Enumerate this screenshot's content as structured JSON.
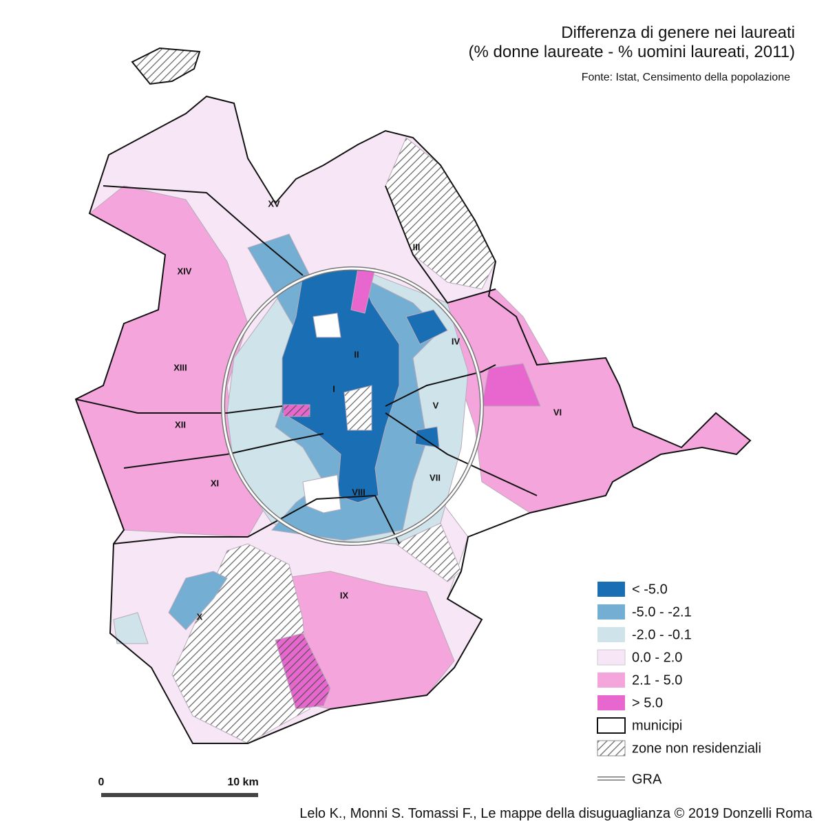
{
  "header": {
    "title": [
      "Differenza di genere nei laureati",
      "(% donne laureate - % uomini laureati, 2011)"
    ],
    "source": "Fonte: Istat, Censimento della popolazione"
  },
  "municipi": [
    "XV",
    "III",
    "XIV",
    "IV",
    "II",
    "XIII",
    "I",
    "V",
    "VI",
    "XII",
    "VII",
    "XI",
    "VIII",
    "IX",
    "X"
  ],
  "legend": {
    "items": [
      "< -5.0",
      "-5.0 - -2.1",
      "-2.0 - -0.1",
      "0.0 - 2.0",
      "2.1 - 5.0",
      "> 5.0",
      "municipi",
      "zone non residenziali",
      "GRA"
    ]
  },
  "scale": {
    "labels": [
      "0",
      "10 km"
    ]
  },
  "credit": "Lelo K., Monni S. Tomassi F., Le mappe della disuguaglianza  © 2019 Donzelli Roma"
}
